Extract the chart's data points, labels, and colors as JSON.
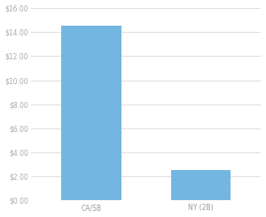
{
  "categories": [
    "CA/SB",
    "NY (2B)"
  ],
  "values": [
    14.5,
    2.5
  ],
  "bar_color": "#74b6e2",
  "ylim": [
    0,
    16
  ],
  "ytick_values": [
    0,
    2,
    4,
    6,
    8,
    10,
    12,
    14,
    16
  ],
  "background_color": "#ffffff",
  "grid_color": "#e0e0e0",
  "tick_label_color": "#aaaaaa",
  "x_tick_label_color": "#999999",
  "bar_width": 0.55,
  "figsize": [
    3.0,
    2.45
  ],
  "dpi": 100
}
